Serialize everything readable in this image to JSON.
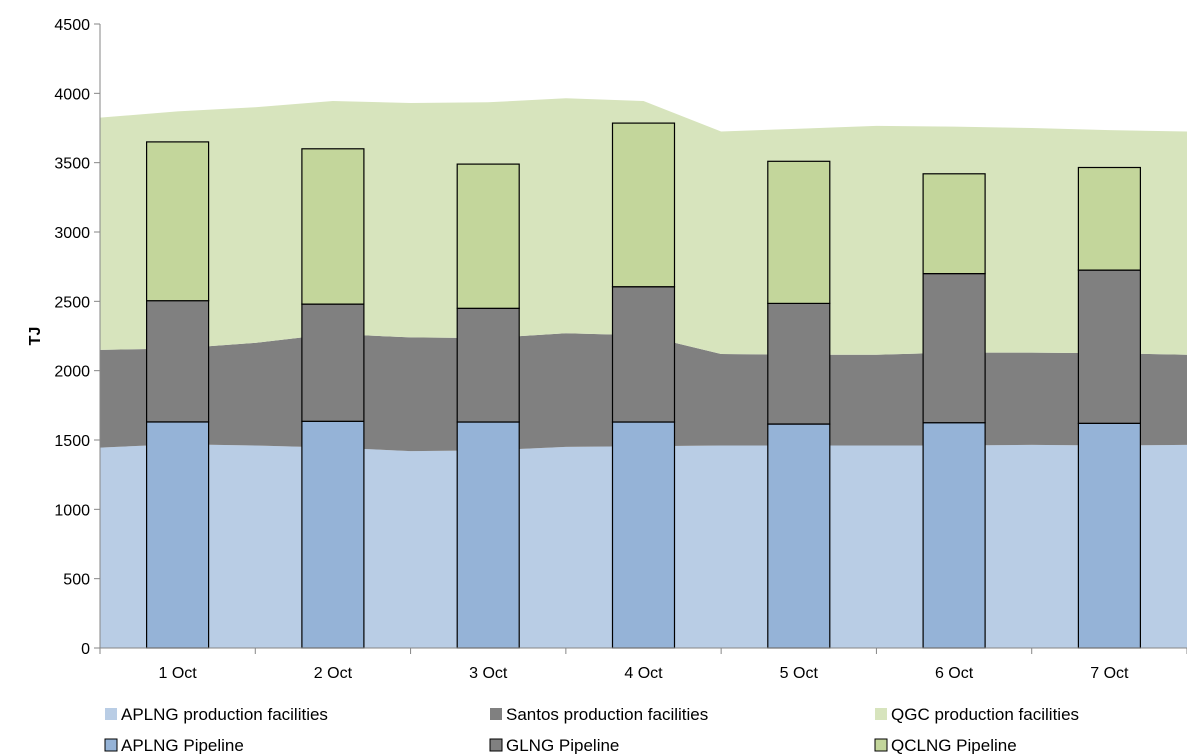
{
  "chart_data": {
    "type": "bar",
    "ylabel": "TJ",
    "ylim": [
      0,
      4500
    ],
    "yticks": [
      0,
      500,
      1000,
      1500,
      2000,
      2500,
      3000,
      3500,
      4000,
      4500
    ],
    "grid": false,
    "legend_placement": "bottom",
    "categories": [
      "1 Oct",
      "2 Oct",
      "3 Oct",
      "4 Oct",
      "5 Oct",
      "6 Oct",
      "7 Oct"
    ],
    "area_x_points": [
      0.5,
      1,
      1.5,
      2,
      2.5,
      3,
      3.5,
      4,
      4.5,
      5,
      5.5,
      6,
      6.5,
      7,
      7.5
    ],
    "area_series": [
      {
        "name": "APLNG production facilities",
        "color": "#b9cde5",
        "values": [
          1445,
          1470,
          1460,
          1445,
          1420,
          1425,
          1450,
          1455,
          1460,
          1460,
          1460,
          1460,
          1465,
          1460,
          1465
        ]
      },
      {
        "name": "Santos production facilities",
        "color": "#808080",
        "values": [
          705,
          690,
          740,
          820,
          820,
          810,
          820,
          800,
          660,
          655,
          655,
          670,
          665,
          665,
          650
        ]
      },
      {
        "name": "QGC production facilities",
        "color": "#d7e4bd",
        "values": [
          1675,
          1710,
          1700,
          1680,
          1690,
          1700,
          1695,
          1690,
          1605,
          1630,
          1650,
          1630,
          1620,
          1610,
          1610
        ]
      }
    ],
    "bar_series": [
      {
        "name": "APLNG Pipeline",
        "color": "#95b3d7",
        "values": [
          1630,
          1635,
          1630,
          1630,
          1615,
          1625,
          1620
        ]
      },
      {
        "name": "GLNG Pipeline",
        "color": "#808080",
        "values": [
          875,
          845,
          820,
          975,
          870,
          1075,
          1105
        ]
      },
      {
        "name": "QCLNG Pipeline",
        "color": "#c3d69b",
        "values": [
          1145,
          1120,
          1040,
          1180,
          1025,
          720,
          740
        ]
      }
    ]
  }
}
